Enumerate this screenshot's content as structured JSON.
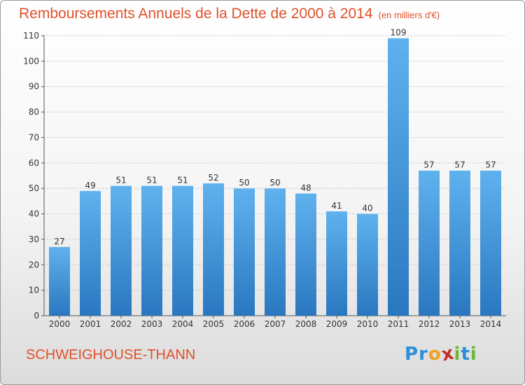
{
  "header": {
    "title": "Remboursements Annuels de la Dette de 2000 à 2014",
    "unit": "(en milliers d'€)"
  },
  "footer": {
    "city": "SCHWEIGHOUSE-THANN",
    "logo_letters": [
      "P",
      "r",
      "o",
      "x",
      "i",
      "t",
      "i"
    ],
    "logo_colors": [
      "#2a8fd8",
      "#2a8fd8",
      "#f0a020",
      "#c0302a",
      "#6cb83a",
      "#2a8fd8",
      "#6cb83a"
    ]
  },
  "chart_data": {
    "type": "bar",
    "title": "Remboursements Annuels de la Dette de 2000 à 2014",
    "xlabel": "",
    "ylabel": "",
    "categories": [
      "2000",
      "2001",
      "2002",
      "2003",
      "2004",
      "2005",
      "2006",
      "2007",
      "2008",
      "2009",
      "2010",
      "2011",
      "2012",
      "2013",
      "2014"
    ],
    "values": [
      27,
      49,
      51,
      51,
      51,
      52,
      50,
      50,
      48,
      41,
      40,
      109,
      57,
      57,
      57
    ],
    "ylim": [
      0,
      110
    ],
    "yticks": [
      0,
      10,
      20,
      30,
      40,
      50,
      60,
      70,
      80,
      90,
      100,
      110
    ],
    "grid": true,
    "bar_color": "#3a8fd8"
  }
}
